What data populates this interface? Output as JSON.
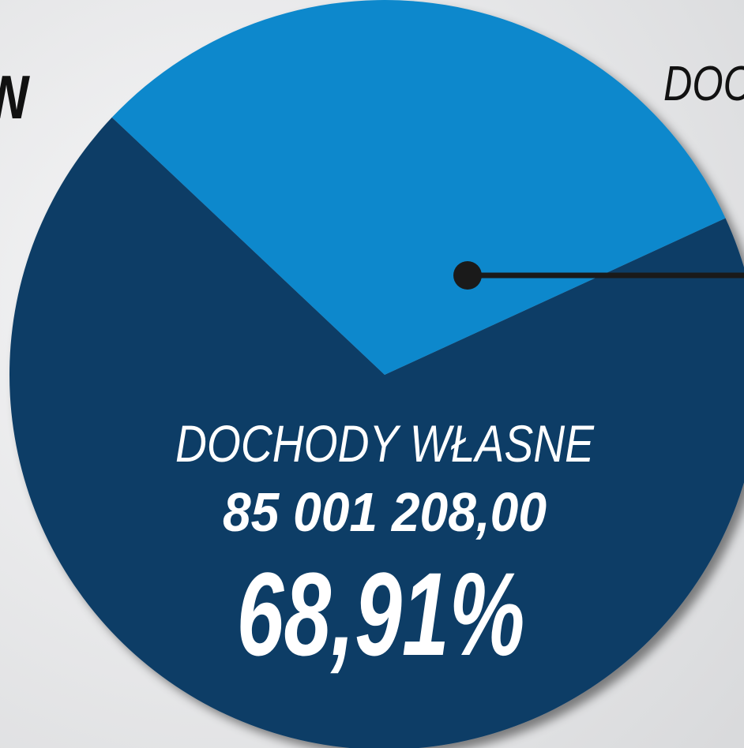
{
  "chart_data": {
    "type": "pie",
    "title": "W",
    "categories": [
      "DOCHODY WŁASNE",
      "DOC"
    ],
    "values": [
      68.91,
      31.09
    ],
    "value_labels": [
      "68,91%",
      null
    ],
    "amounts": [
      "85 001 208,00",
      null
    ],
    "colors": [
      "#0f3d66",
      "#0e88cc"
    ]
  }
}
